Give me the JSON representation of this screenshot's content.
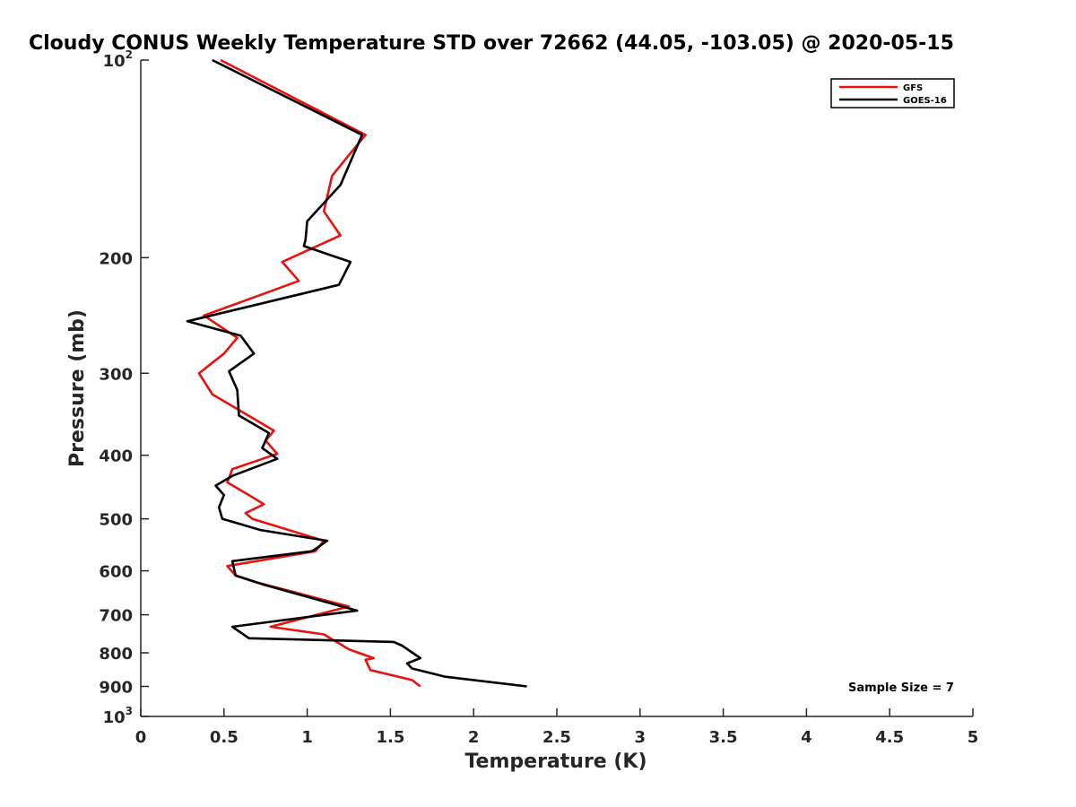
{
  "chart_data": {
    "type": "line",
    "title": "Cloudy CONUS Weekly Temperature STD over 72662 (44.05, -103.05) @ 2020-05-15",
    "xlabel": "Temperature (K)",
    "ylabel": "Pressure (mb)",
    "xlim": [
      0,
      5
    ],
    "ylim": [
      100,
      1000
    ],
    "yscale": "log",
    "y_reversed": true,
    "grid": false,
    "legend_position": "top-right",
    "x_ticks": [
      "0",
      "0.5",
      "1",
      "1.5",
      "2",
      "2.5",
      "3",
      "3.5",
      "4",
      "4.5",
      "5"
    ],
    "y_ticks": [
      {
        "value": 100,
        "base": "10",
        "exp": "2"
      },
      {
        "value": 200,
        "label": "200"
      },
      {
        "value": 300,
        "label": "300"
      },
      {
        "value": 400,
        "label": "400"
      },
      {
        "value": 500,
        "label": "500"
      },
      {
        "value": 600,
        "label": "600"
      },
      {
        "value": 700,
        "label": "700"
      },
      {
        "value": 800,
        "label": "800"
      },
      {
        "value": 900,
        "label": "900"
      },
      {
        "value": 1000,
        "base": "10",
        "exp": "3"
      }
    ],
    "annotation": "Sample Size = 7",
    "series": [
      {
        "name": "GFS",
        "color": "#e8120e",
        "x": [
          0.48,
          1.35,
          1.15,
          1.1,
          1.2,
          0.85,
          0.95,
          0.38,
          0.58,
          0.5,
          0.35,
          0.43,
          0.8,
          0.75,
          0.82,
          0.55,
          0.52,
          0.65,
          0.74,
          0.63,
          0.67,
          1.1,
          1.05,
          0.52,
          0.57,
          0.7,
          1.25,
          0.78,
          1.1,
          1.25,
          1.4,
          1.35,
          1.38,
          1.63,
          1.68
        ],
        "y": [
          100,
          130,
          150,
          170,
          185,
          203,
          217,
          245,
          265,
          280,
          300,
          323,
          367,
          380,
          398,
          420,
          440,
          460,
          475,
          490,
          500,
          540,
          560,
          590,
          610,
          625,
          680,
          730,
          750,
          790,
          815,
          820,
          850,
          880,
          900
        ]
      },
      {
        "name": "GOES-16",
        "color": "#000000",
        "x": [
          0.43,
          1.33,
          1.2,
          1.0,
          0.99,
          0.98,
          1.26,
          1.19,
          0.28,
          0.6,
          0.68,
          0.53,
          0.58,
          0.59,
          0.77,
          0.73,
          0.82,
          0.55,
          0.45,
          0.5,
          0.47,
          0.49,
          0.72,
          1.12,
          1.03,
          0.55,
          0.57,
          0.74,
          1.3,
          0.55,
          0.65,
          1.52,
          1.57,
          1.68,
          1.6,
          1.63,
          1.83,
          2.32
        ],
        "y": [
          100,
          130,
          155,
          176,
          188,
          192,
          203,
          220,
          250,
          263,
          280,
          298,
          318,
          348,
          370,
          390,
          405,
          430,
          445,
          460,
          480,
          500,
          520,
          540,
          560,
          580,
          610,
          630,
          690,
          730,
          760,
          770,
          780,
          815,
          830,
          845,
          870,
          900
        ]
      }
    ]
  }
}
